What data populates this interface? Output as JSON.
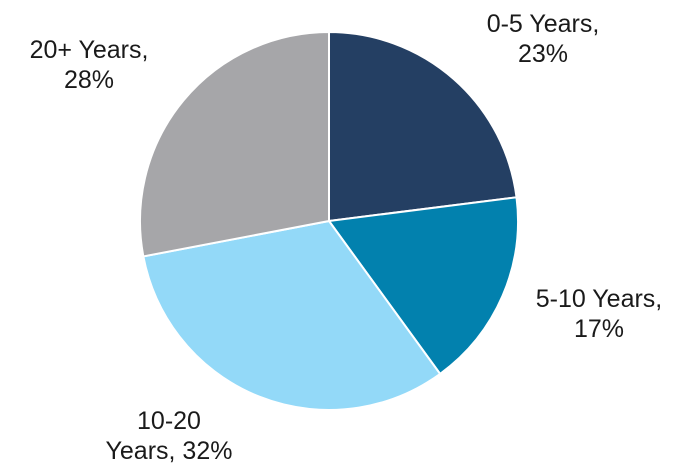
{
  "chart_data": {
    "type": "pie",
    "title": "",
    "slices": [
      {
        "label": "0-5 Years",
        "value": 23,
        "label_lines": [
          "0-5 Years,",
          "23%"
        ],
        "color": "#243f63"
      },
      {
        "label": "5-10 Years",
        "value": 17,
        "label_lines": [
          "5-10 Years,",
          "17%"
        ],
        "color": "#0281ae"
      },
      {
        "label": "10-20 Years",
        "value": 32,
        "label_lines": [
          "10-20",
          "Years, 32%"
        ],
        "color": "#93d9f8"
      },
      {
        "label": "20+ Years",
        "value": 28,
        "label_lines": [
          "20+ Years,",
          "28%"
        ],
        "color": "#a6a6a9"
      }
    ],
    "start_angle": "12 o'clock",
    "direction": "clockwise",
    "legend": "none",
    "slice_border_color": "#ffffff"
  }
}
